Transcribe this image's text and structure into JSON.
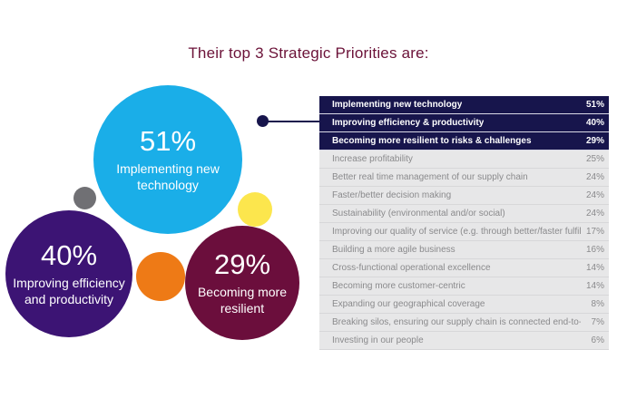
{
  "title": "Their top 3 Strategic Priorities are:",
  "highlight_circles": [
    {
      "value": "51%",
      "label": "Implementing new\ntechnology",
      "color": "#1aaee8"
    },
    {
      "value": "40%",
      "label": "Improving efficiency\nand productivity",
      "color": "#3c1474"
    },
    {
      "value": "29%",
      "label": "Becoming more\nresilient",
      "color": "#6b0e3c"
    }
  ],
  "decorative_circles": [
    {
      "color": "#707074"
    },
    {
      "color": "#fce64d"
    },
    {
      "color": "#ee7a16"
    }
  ],
  "chart_data": {
    "type": "table",
    "columns": [
      "Priority",
      "Percentage"
    ],
    "rows": [
      {
        "label": "Implementing new technology",
        "value": "51%"
      },
      {
        "label": "Improving efficiency & productivity",
        "value": "40%"
      },
      {
        "label": "Becoming more resilient to risks & challenges",
        "value": "29%"
      },
      {
        "label": "Increase profitability",
        "value": "25%"
      },
      {
        "label": "Better real time management of our supply chain",
        "value": "24%"
      },
      {
        "label": "Faster/better decision making",
        "value": "24%"
      },
      {
        "label": "Sustainability (environmental and/or social)",
        "value": "24%"
      },
      {
        "label": "Improving our quality of service (e.g. through better/faster fulfilment)",
        "value": "17%"
      },
      {
        "label": "Building a more agile business",
        "value": "16%"
      },
      {
        "label": "Cross-functional operational excellence",
        "value": "14%"
      },
      {
        "label": "Becoming more customer-centric",
        "value": "14%"
      },
      {
        "label": "Expanding our geographical coverage",
        "value": "8%"
      },
      {
        "label": "Breaking silos, ensuring our supply chain is connected end-to-end",
        "value": "7%"
      },
      {
        "label": "Investing in our people",
        "value": "6%"
      }
    ],
    "highlighted_rows": 3,
    "colors": {
      "highlight_row": "#17154c",
      "table_background": "#e7e7e8",
      "title": "#6b1238"
    }
  }
}
